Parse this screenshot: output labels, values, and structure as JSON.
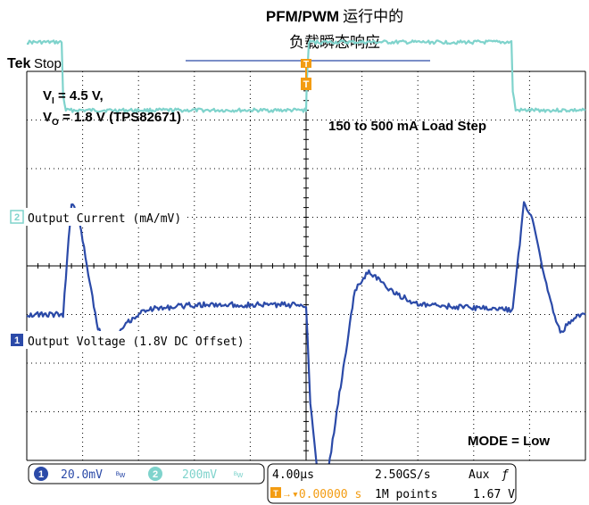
{
  "title": {
    "line1_bold": "PFM/PWM",
    "line1_rest": "运行中的",
    "line2": "负载瞬态响应"
  },
  "scope": {
    "brand": "Tek",
    "state": "Stop"
  },
  "annotations": {
    "vin_prefix": "V",
    "vin_sub": "I",
    "vin_value": " = 4.5 V,",
    "vout_prefix": "V",
    "vout_sub": "O",
    "vout_value": " = 1.8 V (TPS82671)",
    "load_step": "150 to 500 mA Load Step",
    "mode": "MODE = Low"
  },
  "markers": {
    "ch2": "2",
    "ch1": "1",
    "trigger": "T"
  },
  "status_bar": {
    "ch1_num": "1",
    "ch1_scale": "20.0mV",
    "ch2_num": "2",
    "ch2_scale": "200mV",
    "bw_symbol": "ᴮw",
    "timebase": "4.00µs",
    "sample_rate": "2.50GS/s",
    "trigger_source": "Aux",
    "trigger_slope": "ƒ",
    "trigger_pos": "▾0.00000 s",
    "record_length": "1M points",
    "trigger_level": "1.67 V"
  },
  "colors": {
    "ch1": "#2b4aa8",
    "ch2": "#7fd3cc",
    "trigger": "#f39c12",
    "grid": "#000000",
    "title_line": "#2b4aa8"
  },
  "chart_data": {
    "type": "line",
    "x_unit": "µs",
    "xlim": [
      -20,
      20
    ],
    "series": [
      {
        "name": "Output Current (mA/mV)",
        "channel": 2,
        "y_unit": "div",
        "points": [
          [
            -20,
            4.6
          ],
          [
            -17.5,
            4.6
          ],
          [
            -17.4,
            3.5
          ],
          [
            -17.2,
            3.2
          ],
          [
            -15,
            3.2
          ],
          [
            0,
            3.2
          ],
          [
            0.05,
            3.8
          ],
          [
            0.2,
            4.6
          ],
          [
            8,
            4.6
          ],
          [
            14.7,
            4.6
          ],
          [
            14.8,
            3.6
          ],
          [
            15,
            3.2
          ],
          [
            20,
            3.2
          ]
        ]
      },
      {
        "name": "Output Voltage (1.8V DC Offset)",
        "channel": 1,
        "y_unit": "div",
        "points": [
          [
            -20,
            -1.0
          ],
          [
            -17.4,
            -1.0
          ],
          [
            -16.8,
            1.3
          ],
          [
            -16.3,
            1.0
          ],
          [
            -15.5,
            -0.3
          ],
          [
            -14.9,
            -1.3
          ],
          [
            -14.2,
            -1.6
          ],
          [
            -13,
            -1.2
          ],
          [
            -11.5,
            -0.9
          ],
          [
            -8,
            -0.8
          ],
          [
            0,
            -0.8
          ],
          [
            0.3,
            -2.8
          ],
          [
            0.8,
            -4.2
          ],
          [
            1.4,
            -4.6
          ],
          [
            2.2,
            -3.0
          ],
          [
            3.5,
            -0.5
          ],
          [
            4.5,
            -0.1
          ],
          [
            6,
            -0.5
          ],
          [
            8,
            -0.8
          ],
          [
            14.8,
            -0.9
          ],
          [
            15.6,
            1.3
          ],
          [
            16.2,
            1.0
          ],
          [
            17.2,
            -0.4
          ],
          [
            18.2,
            -1.4
          ],
          [
            19,
            -1.1
          ],
          [
            20,
            -1.0
          ]
        ]
      }
    ]
  }
}
